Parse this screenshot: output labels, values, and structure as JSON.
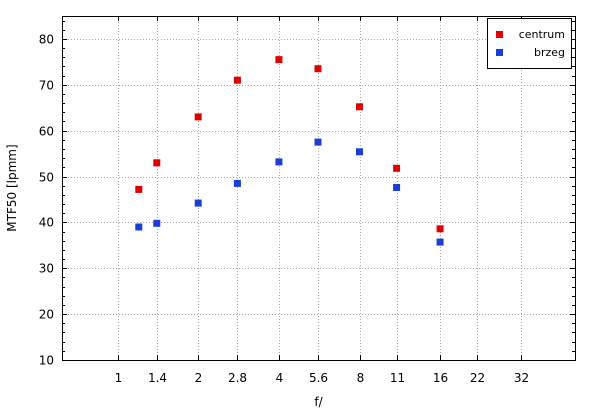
{
  "chart_data": {
    "type": "scatter",
    "xlabel": "f/",
    "ylabel": "MTF50 [lpmm]",
    "x_scale": "log2",
    "x_ticks": [
      1,
      1.4,
      2,
      2.8,
      4,
      5.6,
      8,
      11,
      16,
      22,
      32
    ],
    "x_tick_labels": [
      "1",
      "1.4",
      "2",
      "2.8",
      "4",
      "5.6",
      "8",
      "11",
      "16",
      "22",
      "32"
    ],
    "xlim": [
      0.62,
      51
    ],
    "y_ticks": [
      10,
      20,
      30,
      40,
      50,
      60,
      70,
      80
    ],
    "ylim": [
      10,
      85
    ],
    "grid": true,
    "legend_position": "top-right",
    "series": [
      {
        "name": "centrum",
        "color": "#e00000",
        "points": [
          {
            "x": 1.2,
            "y": 47.2
          },
          {
            "x": 1.4,
            "y": 53.0
          },
          {
            "x": 2,
            "y": 63.0
          },
          {
            "x": 2.8,
            "y": 71.0
          },
          {
            "x": 4,
            "y": 75.5
          },
          {
            "x": 5.6,
            "y": 73.5
          },
          {
            "x": 8,
            "y": 65.2
          },
          {
            "x": 11,
            "y": 51.8
          },
          {
            "x": 16,
            "y": 38.6
          }
        ]
      },
      {
        "name": "brzeg",
        "color": "#1a3fd6",
        "points": [
          {
            "x": 1.2,
            "y": 39.0
          },
          {
            "x": 1.4,
            "y": 39.8
          },
          {
            "x": 2,
            "y": 44.2
          },
          {
            "x": 2.8,
            "y": 48.5
          },
          {
            "x": 4,
            "y": 53.2
          },
          {
            "x": 5.6,
            "y": 57.5
          },
          {
            "x": 8,
            "y": 55.4
          },
          {
            "x": 11,
            "y": 47.6
          },
          {
            "x": 16,
            "y": 35.7
          }
        ]
      }
    ]
  }
}
